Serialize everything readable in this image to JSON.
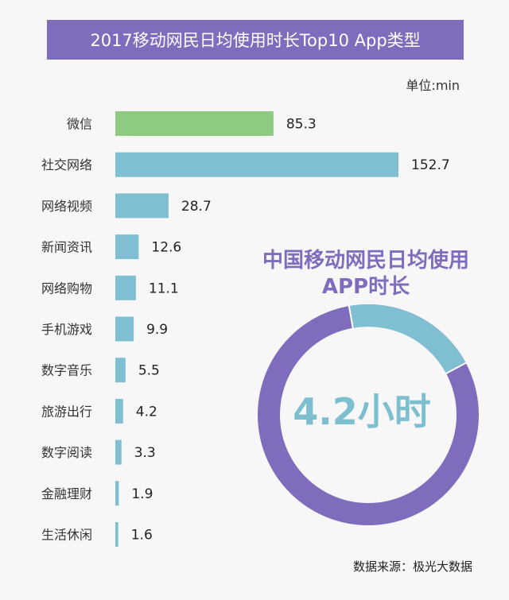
{
  "title": "2017移动网民日均使用时长Top10 App类型",
  "unit": "单位:min",
  "source": "数据来源：极光大数据",
  "colors": {
    "banner": "#7f6cbd",
    "highlight_bar": "#8fca83",
    "bar": "#7fbfd1",
    "donut_main": "#7f6cbd",
    "donut_segment": "#7fbfd1"
  },
  "chart_data": [
    {
      "type": "bar",
      "orientation": "horizontal",
      "categories": [
        "微信",
        "社交网络",
        "网络视频",
        "新闻资讯",
        "网络购物",
        "手机游戏",
        "数字音乐",
        "旅游出行",
        "数字阅读",
        "金融理财",
        "生活休闲"
      ],
      "values": [
        85.3,
        152.7,
        28.7,
        12.6,
        11.1,
        9.9,
        5.5,
        4.2,
        3.3,
        1.9,
        1.6
      ],
      "value_labels": [
        "85.3",
        "152.7",
        "28.7",
        "12.6",
        "11.1",
        "9.9",
        "5.5",
        "4.2",
        "3.3",
        "1.9",
        "1.6"
      ],
      "highlight_index": 0,
      "grid": false,
      "ylabel": "单位:min"
    },
    {
      "type": "pie",
      "style": "donut",
      "title": "中国移动网民日均使用APP时长",
      "center_label": "4.2小时",
      "values": [
        0.2,
        0.8
      ]
    }
  ]
}
